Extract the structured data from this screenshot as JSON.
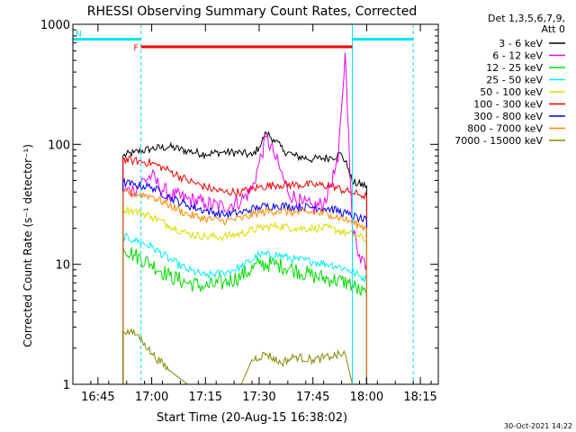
{
  "chart_data": {
    "type": "line",
    "title": "RHESSI Observing Summary Count Rates, Corrected",
    "xlabel": "Start Time (20-Aug-15 16:38:02)",
    "ylabel": "Corrected Count Rate (s⁻¹ detector⁻¹)",
    "y_scale": "log",
    "ylim": [
      1,
      1000
    ],
    "xlim": [
      "16:38",
      "18:20"
    ],
    "xticks": [
      "16:45",
      "17:00",
      "17:15",
      "17:30",
      "17:45",
      "18:00",
      "18:15"
    ],
    "yticks": [
      "1",
      "10",
      "100",
      "1000"
    ],
    "grid": false,
    "legend_position": "right",
    "legend_header": [
      "Det 1,3,5,6,7,9,",
      "Att 0"
    ],
    "footer_date": "30-Oct-2021 14:22",
    "flags": [
      {
        "label": "N",
        "color": "#00e5ee",
        "segments": [
          [
            "16:38",
            "16:57"
          ],
          [
            "17:56",
            "18:13"
          ]
        ],
        "level": 750
      },
      {
        "label": "F",
        "color": "#ee0000",
        "segments": [
          [
            "16:57",
            "17:56"
          ]
        ],
        "level": 650
      }
    ],
    "vertical_markers": {
      "solid": [
        "16:38",
        "17:56"
      ],
      "dashed": [
        "16:57",
        "18:13"
      ],
      "color": "#00e5ee"
    },
    "series": [
      {
        "name": "3 - 6 keV",
        "color": "#000000",
        "points": [
          [
            "16:52",
            1
          ],
          [
            "16:52",
            80
          ],
          [
            "16:55",
            85
          ],
          [
            "17:00",
            92
          ],
          [
            "17:05",
            95
          ],
          [
            "17:10",
            88
          ],
          [
            "17:15",
            83
          ],
          [
            "17:20",
            86
          ],
          [
            "17:25",
            85
          ],
          [
            "17:28",
            80
          ],
          [
            "17:30",
            95
          ],
          [
            "17:32",
            125
          ],
          [
            "17:34",
            110
          ],
          [
            "17:37",
            88
          ],
          [
            "17:40",
            80
          ],
          [
            "17:45",
            75
          ],
          [
            "17:50",
            78
          ],
          [
            "17:53",
            83
          ],
          [
            "17:55",
            62
          ],
          [
            "17:56",
            48
          ],
          [
            "18:00",
            45
          ],
          [
            "18:00",
            1
          ]
        ]
      },
      {
        "name": "6 - 12 keV",
        "color": "#ee00ee",
        "points": [
          [
            "16:52",
            1
          ],
          [
            "16:52",
            40
          ],
          [
            "16:55",
            42
          ],
          [
            "16:57",
            48
          ],
          [
            "17:00",
            55
          ],
          [
            "17:02",
            45
          ],
          [
            "17:05",
            38
          ],
          [
            "17:10",
            35
          ],
          [
            "17:15",
            32
          ],
          [
            "17:20",
            30
          ],
          [
            "17:25",
            34
          ],
          [
            "17:28",
            42
          ],
          [
            "17:30",
            70
          ],
          [
            "17:32",
            115
          ],
          [
            "17:34",
            85
          ],
          [
            "17:36",
            60
          ],
          [
            "17:38",
            40
          ],
          [
            "17:42",
            32
          ],
          [
            "17:45",
            30
          ],
          [
            "17:48",
            32
          ],
          [
            "17:52",
            70
          ],
          [
            "17:53",
            200
          ],
          [
            "17:54",
            580
          ],
          [
            "17:55",
            120
          ],
          [
            "17:56",
            20
          ],
          [
            "17:58",
            12
          ],
          [
            "18:00",
            10
          ],
          [
            "18:00",
            1
          ]
        ]
      },
      {
        "name": "12 - 25 keV",
        "color": "#00dd00",
        "points": [
          [
            "16:52",
            1
          ],
          [
            "16:52",
            14
          ],
          [
            "16:55",
            12
          ],
          [
            "17:00",
            10
          ],
          [
            "17:05",
            8
          ],
          [
            "17:10",
            7
          ],
          [
            "17:15",
            6.5
          ],
          [
            "17:20",
            7
          ],
          [
            "17:25",
            8
          ],
          [
            "17:30",
            10
          ],
          [
            "17:35",
            10
          ],
          [
            "17:40",
            9
          ],
          [
            "17:45",
            8
          ],
          [
            "17:50",
            7.5
          ],
          [
            "17:55",
            7
          ],
          [
            "17:58",
            6
          ],
          [
            "18:00",
            5.5
          ],
          [
            "18:00",
            1
          ]
        ]
      },
      {
        "name": "25 - 50 keV",
        "color": "#00eeee",
        "points": [
          [
            "16:52",
            1
          ],
          [
            "16:52",
            17
          ],
          [
            "16:55",
            16
          ],
          [
            "17:00",
            14
          ],
          [
            "17:05",
            11
          ],
          [
            "17:10",
            9
          ],
          [
            "17:15",
            8
          ],
          [
            "17:20",
            8.5
          ],
          [
            "17:25",
            9.5
          ],
          [
            "17:30",
            12
          ],
          [
            "17:35",
            12
          ],
          [
            "17:40",
            11
          ],
          [
            "17:45",
            10.5
          ],
          [
            "17:50",
            10
          ],
          [
            "17:55",
            9
          ],
          [
            "17:58",
            8
          ],
          [
            "18:00",
            7.5
          ],
          [
            "18:00",
            1
          ]
        ]
      },
      {
        "name": "50 - 100 keV",
        "color": "#dddd00",
        "points": [
          [
            "16:52",
            1
          ],
          [
            "16:52",
            29
          ],
          [
            "16:55",
            28
          ],
          [
            "17:00",
            25
          ],
          [
            "17:05",
            21
          ],
          [
            "17:10",
            18
          ],
          [
            "17:15",
            17
          ],
          [
            "17:20",
            17
          ],
          [
            "17:25",
            18
          ],
          [
            "17:30",
            20
          ],
          [
            "17:35",
            21
          ],
          [
            "17:40",
            20
          ],
          [
            "17:45",
            20
          ],
          [
            "17:50",
            20
          ],
          [
            "17:55",
            18
          ],
          [
            "17:58",
            17
          ],
          [
            "18:00",
            16
          ],
          [
            "18:00",
            1
          ]
        ]
      },
      {
        "name": "100 - 300 keV",
        "color": "#ee0000",
        "points": [
          [
            "16:52",
            1
          ],
          [
            "16:52",
            75
          ],
          [
            "16:55",
            73
          ],
          [
            "17:00",
            70
          ],
          [
            "17:05",
            60
          ],
          [
            "17:10",
            50
          ],
          [
            "17:15",
            44
          ],
          [
            "17:20",
            40
          ],
          [
            "17:25",
            40
          ],
          [
            "17:30",
            44
          ],
          [
            "17:35",
            46
          ],
          [
            "17:40",
            46
          ],
          [
            "17:45",
            46
          ],
          [
            "17:50",
            45
          ],
          [
            "17:55",
            40
          ],
          [
            "17:58",
            38
          ],
          [
            "18:00",
            37
          ],
          [
            "18:00",
            1
          ]
        ]
      },
      {
        "name": "300 - 800 keV",
        "color": "#0000ee",
        "points": [
          [
            "16:52",
            1
          ],
          [
            "16:52",
            48
          ],
          [
            "16:55",
            46
          ],
          [
            "17:00",
            44
          ],
          [
            "17:05",
            36
          ],
          [
            "17:10",
            31
          ],
          [
            "17:15",
            28
          ],
          [
            "17:20",
            26
          ],
          [
            "17:25",
            27
          ],
          [
            "17:30",
            30
          ],
          [
            "17:35",
            31
          ],
          [
            "17:40",
            30
          ],
          [
            "17:45",
            30
          ],
          [
            "17:50",
            29
          ],
          [
            "17:55",
            26
          ],
          [
            "17:58",
            24
          ],
          [
            "18:00",
            23
          ],
          [
            "18:00",
            1
          ]
        ]
      },
      {
        "name": "800 - 7000 keV",
        "color": "#ff8800",
        "points": [
          [
            "16:52",
            1
          ],
          [
            "16:52",
            40
          ],
          [
            "16:55",
            39
          ],
          [
            "17:00",
            37
          ],
          [
            "17:05",
            31
          ],
          [
            "17:10",
            26
          ],
          [
            "17:15",
            24
          ],
          [
            "17:20",
            23
          ],
          [
            "17:25",
            24
          ],
          [
            "17:30",
            27
          ],
          [
            "17:35",
            28
          ],
          [
            "17:40",
            27
          ],
          [
            "17:45",
            27
          ],
          [
            "17:50",
            26
          ],
          [
            "17:55",
            23
          ],
          [
            "17:58",
            21
          ],
          [
            "18:00",
            20
          ],
          [
            "18:00",
            1
          ]
        ]
      },
      {
        "name": "7000 - 15000 keV",
        "color": "#888800",
        "points": [
          [
            "16:52",
            1
          ],
          [
            "16:52",
            2.8
          ],
          [
            "16:56",
            2.6
          ],
          [
            "16:58",
            2.2
          ],
          [
            "17:00",
            1.8
          ],
          [
            "17:05",
            1.3
          ],
          [
            "17:10",
            1
          ],
          [
            "17:25",
            1
          ],
          [
            "17:28",
            1.6
          ],
          [
            "17:32",
            1.8
          ],
          [
            "17:36",
            1.5
          ],
          [
            "17:40",
            1.7
          ],
          [
            "17:45",
            1.6
          ],
          [
            "17:50",
            1.7
          ],
          [
            "17:54",
            1.8
          ],
          [
            "17:56",
            1
          ]
        ]
      }
    ]
  }
}
